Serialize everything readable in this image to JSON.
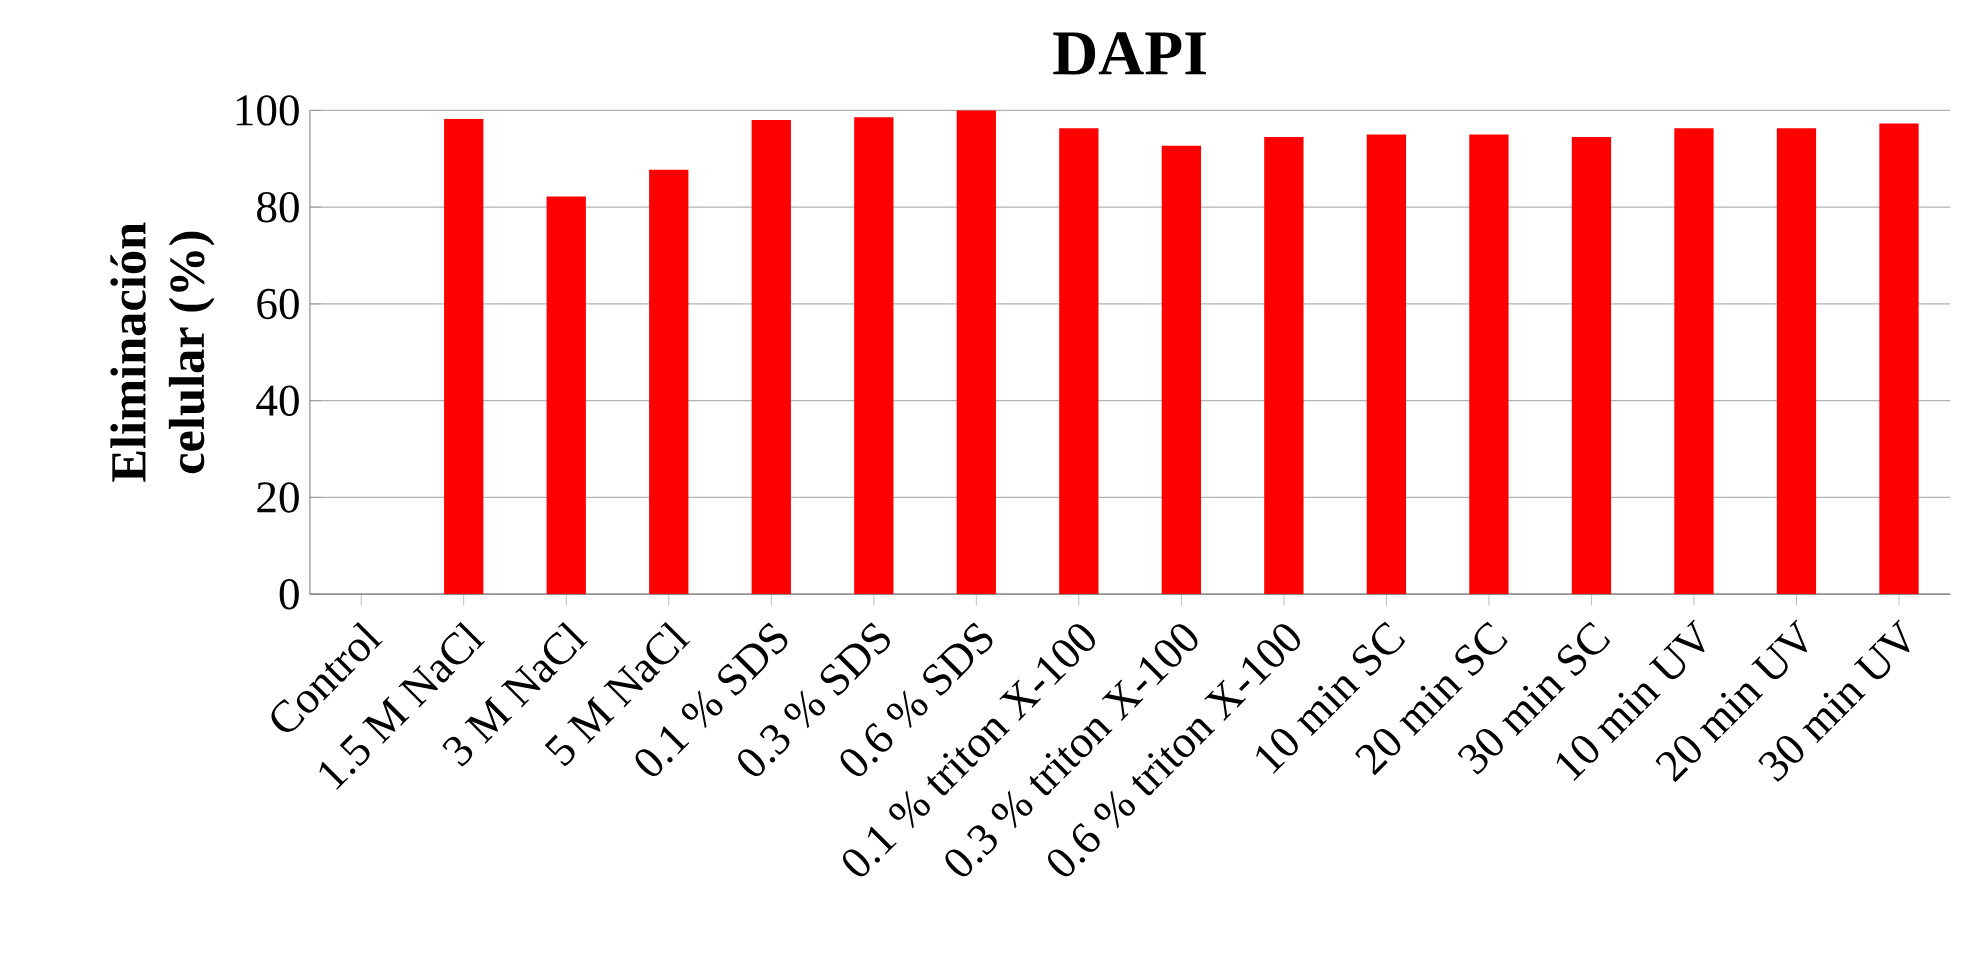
{
  "chart_data": {
    "type": "bar",
    "title": "DAPI",
    "ylabel": "Eliminación celular (%)",
    "categories": [
      "Control",
      "1.5 M NaCl",
      "3 M NaCl",
      "5 M NaCl",
      "0.1 % SDS",
      "0.3 % SDS",
      "0.6 % SDS",
      "0.1 % triton X-100",
      "0.3 % triton X-100",
      "0.6 % triton X-100",
      "10 min SC",
      "20 min SC",
      "30 min SC",
      "10 min UV",
      "20 min UV",
      "30 min UV"
    ],
    "values": [
      0,
      98.2,
      82.2,
      87.7,
      98,
      98.6,
      100,
      96.3,
      92.7,
      94.5,
      95,
      95,
      94.5,
      96.3,
      96.3,
      97.3
    ],
    "color": "#ff0000",
    "ylim": [
      0,
      100
    ],
    "yticks": [
      0,
      20,
      40,
      60,
      80,
      100
    ],
    "grid": "y"
  }
}
